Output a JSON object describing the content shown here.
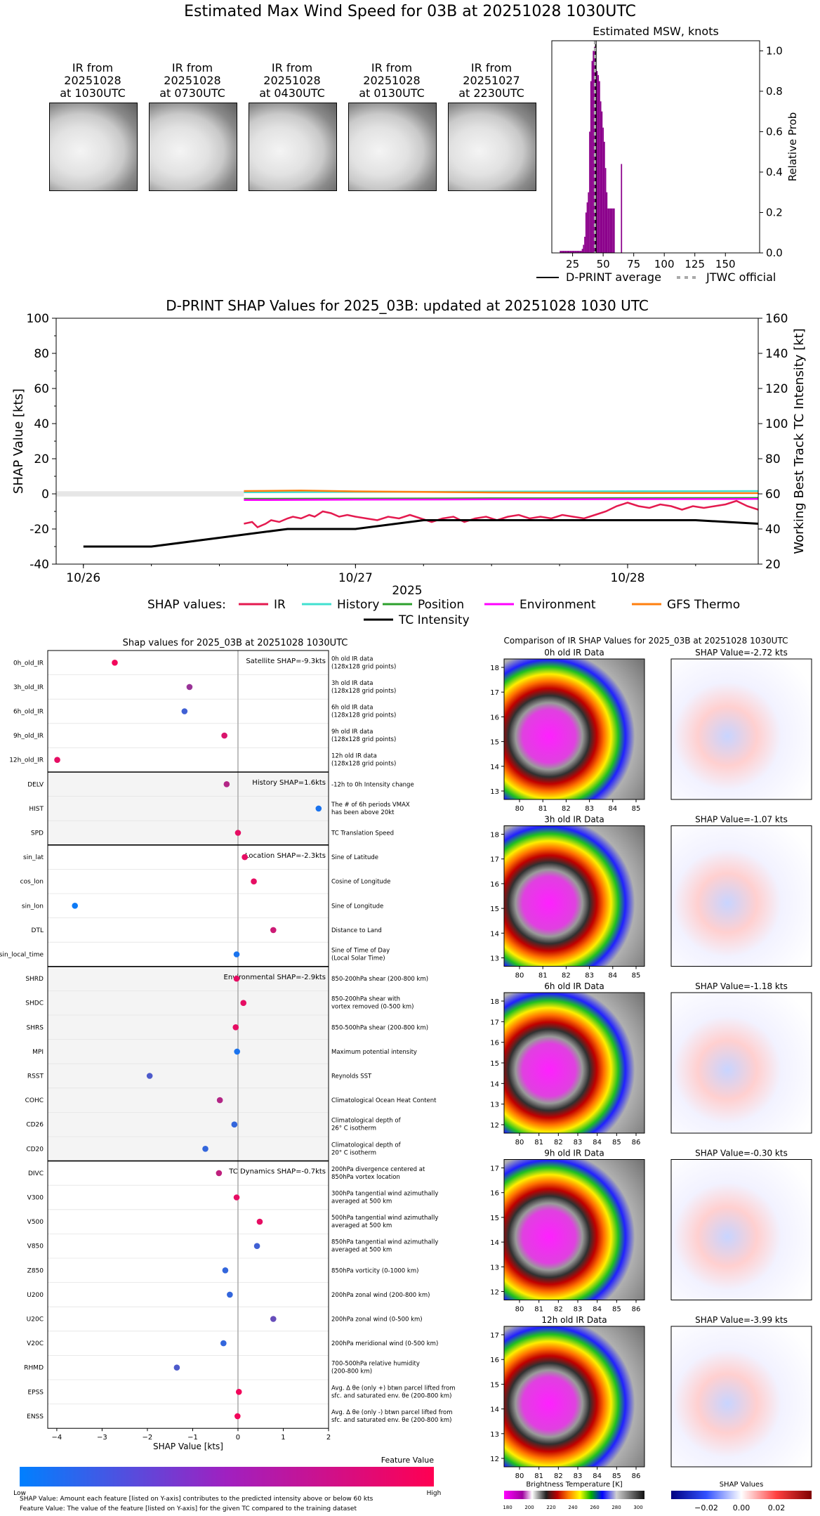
{
  "title": "Estimated Max Wind Speed for 03B at 20251028 1030UTC",
  "ir_thumbnails": [
    {
      "label": [
        "IR from",
        "20251028",
        "at 1030UTC"
      ]
    },
    {
      "label": [
        "IR from",
        "20251028",
        "at 0730UTC"
      ]
    },
    {
      "label": [
        "IR from",
        "20251028",
        "at 0430UTC"
      ]
    },
    {
      "label": [
        "IR from",
        "20251028",
        "at 0130UTC"
      ]
    },
    {
      "label": [
        "IR from",
        "20251027",
        "at 2230UTC"
      ]
    }
  ],
  "msw_chart": {
    "title": "Estimated MSW, knots",
    "ylabel": "Relative Prob",
    "legend": {
      "avg": "D-PRINT average",
      "jtwc": "JTWC official"
    }
  },
  "shap_timeseries": {
    "title": "D-PRINT SHAP Values for 2025_03B: updated at 20251028 1030 UTC",
    "ylabel_left": "SHAP Value [kts]",
    "ylabel_right": "Working Best Track TC Intensity [kt]",
    "xlabel": "2025",
    "legend_title": "SHAP values:",
    "legend": [
      "IR",
      "History",
      "Position",
      "Environment",
      "GFS Thermo",
      "TC Intensity"
    ]
  },
  "shap_features": {
    "title": "Shap values for 2025_03B at 20251028 1030UTC",
    "xlabel": "SHAP Value [kts]",
    "colorbar_label": "Feature Value",
    "colorbar_low": "Low",
    "colorbar_high": "High",
    "footnote1": "SHAP Value: Amount each feature [listed on Y-axis] contributes to the predicted intensity above or below 60 kts",
    "footnote2": "Feature Value: The value of the feature [listed on Y-axis] for the given TC compared to the training dataset",
    "groups": [
      {
        "label": "Satellite SHAP=-9.3kts"
      },
      {
        "label": "History SHAP=1.6kts"
      },
      {
        "label": "Location SHAP=-2.3kts"
      },
      {
        "label": "Environmental SHAP=-2.9kts"
      },
      {
        "label": "TC Dynamics SHAP=-0.7kts"
      }
    ],
    "rows": [
      {
        "name": "0h_old_IR",
        "desc": [
          "0h old IR data",
          "(128x128 grid points)"
        ]
      },
      {
        "name": "3h_old_IR",
        "desc": [
          "3h old IR data",
          "(128x128 grid points)"
        ]
      },
      {
        "name": "6h_old_IR",
        "desc": [
          "6h old IR data",
          "(128x128 grid points)"
        ]
      },
      {
        "name": "9h_old_IR",
        "desc": [
          "9h old IR data",
          "(128x128 grid points)"
        ]
      },
      {
        "name": "12h_old_IR",
        "desc": [
          "12h old IR data",
          "(128x128 grid points)"
        ]
      },
      {
        "name": "DELV",
        "desc": [
          "-12h to 0h Intensity change"
        ]
      },
      {
        "name": "HIST",
        "desc": [
          "The # of 6h periods VMAX",
          "has been above 20kt"
        ]
      },
      {
        "name": "SPD",
        "desc": [
          "TC Translation Speed"
        ]
      },
      {
        "name": "sin_lat",
        "desc": [
          "Sine of Latitude"
        ]
      },
      {
        "name": "cos_lon",
        "desc": [
          "Cosine of Longitude"
        ]
      },
      {
        "name": "sin_lon",
        "desc": [
          "Sine of Longitude"
        ]
      },
      {
        "name": "DTL",
        "desc": [
          "Distance to Land"
        ]
      },
      {
        "name": "sin_local_time",
        "desc": [
          "Sine of Time of Day",
          "(Local Solar Time)"
        ]
      },
      {
        "name": "SHRD",
        "desc": [
          "850-200hPa shear (200-800 km)"
        ]
      },
      {
        "name": "SHDC",
        "desc": [
          "850-200hPa shear with",
          "vortex removed (0-500 km)"
        ]
      },
      {
        "name": "SHRS",
        "desc": [
          "850-500hPa shear (200-800 km)"
        ]
      },
      {
        "name": "MPI",
        "desc": [
          "Maximum potential intensity"
        ]
      },
      {
        "name": "RSST",
        "desc": [
          "Reynolds SST"
        ]
      },
      {
        "name": "COHC",
        "desc": [
          "Climatological Ocean Heat Content"
        ]
      },
      {
        "name": "CD26",
        "desc": [
          "Climatological depth of",
          "26° C isotherm"
        ]
      },
      {
        "name": "CD20",
        "desc": [
          "Climatological depth of",
          "20° C isotherm"
        ]
      },
      {
        "name": "DIVC",
        "desc": [
          "200hPa divergence centered at",
          "850hPa vortex location"
        ]
      },
      {
        "name": "V300",
        "desc": [
          "300hPa tangential wind azimuthally",
          "averaged at 500 km"
        ]
      },
      {
        "name": "V500",
        "desc": [
          "500hPa tangential wind azimuthally",
          "averaged at 500 km"
        ]
      },
      {
        "name": "V850",
        "desc": [
          "850hPa tangential wind azimuthally",
          "averaged at 500 km"
        ]
      },
      {
        "name": "Z850",
        "desc": [
          "850hPa vorticity (0-1000 km)"
        ]
      },
      {
        "name": "U200",
        "desc": [
          "200hPa zonal wind (200-800 km)"
        ]
      },
      {
        "name": "U20C",
        "desc": [
          "200hPa zonal wind (0-500 km)"
        ]
      },
      {
        "name": "V20C",
        "desc": [
          "200hPa meridional wind (0-500 km)"
        ]
      },
      {
        "name": "RHMD",
        "desc": [
          "700-500hPa relative humidity",
          "(200-800 km)"
        ]
      },
      {
        "name": "EPSS",
        "desc": [
          "Avg. Δ θe (only +) btwn parcel lifted from",
          "sfc. and saturated env. θe (200-800 km)"
        ]
      },
      {
        "name": "ENSS",
        "desc": [
          "Avg. Δ θe (only -) btwn parcel lifted from",
          "sfc. and saturated env. θe (200-800 km)"
        ]
      }
    ]
  },
  "ir_comparison": {
    "title": "Comparison of IR SHAP Values for 2025_03B at 20251028 1030UTC",
    "panels": [
      {
        "data_title": "0h old IR Data",
        "shap_title": "SHAP Value=-2.72 kts",
        "lat_ticks": [
          "13",
          "14",
          "15",
          "16",
          "17",
          "18"
        ],
        "lon_ticks": [
          "80",
          "81",
          "82",
          "83",
          "84",
          "85"
        ]
      },
      {
        "data_title": "3h old IR Data",
        "shap_title": "SHAP Value=-1.07 kts",
        "lat_ticks": [
          "13",
          "14",
          "15",
          "16",
          "17",
          "18"
        ],
        "lon_ticks": [
          "80",
          "81",
          "82",
          "83",
          "84",
          "85"
        ]
      },
      {
        "data_title": "6h old IR Data",
        "shap_title": "SHAP Value=-1.18 kts",
        "lat_ticks": [
          "12",
          "13",
          "14",
          "15",
          "16",
          "17",
          "18"
        ],
        "lon_ticks": [
          "80",
          "81",
          "82",
          "83",
          "84",
          "85",
          "86"
        ]
      },
      {
        "data_title": "9h old IR Data",
        "shap_title": "SHAP Value=-0.30 kts",
        "lat_ticks": [
          "12",
          "13",
          "14",
          "15",
          "16",
          "17"
        ],
        "lon_ticks": [
          "80",
          "81",
          "82",
          "83",
          "84",
          "85",
          "86"
        ]
      },
      {
        "data_title": "12h old IR Data",
        "shap_title": "SHAP Value=-3.99 kts",
        "lat_ticks": [
          "12",
          "13",
          "14",
          "15",
          "16",
          "17"
        ],
        "lon_ticks": [
          "80",
          "81",
          "82",
          "83",
          "84",
          "85",
          "86"
        ]
      }
    ],
    "bt_colorbar_label": "Brightness Temperature [K]",
    "bt_ticks": [
      "180",
      "200",
      "220",
      "240",
      "260",
      "280",
      "300"
    ],
    "shap_colorbar_label": "SHAP Values",
    "shap_ticks": [
      "−0.02",
      "0.00",
      "0.02"
    ]
  },
  "chart_data": [
    {
      "type": "bar",
      "title": "Estimated MSW, knots",
      "ylabel": "Relative Prob",
      "xlim": [
        8,
        178
      ],
      "ylim": [
        0,
        1.05
      ],
      "xticks": [
        "25",
        "50",
        "75",
        "100",
        "125",
        "150"
      ],
      "yticks": [
        "0.0",
        "0.2",
        "0.4",
        "0.6",
        "0.8",
        "1.0"
      ],
      "bin_width": 1,
      "x": [
        15,
        16,
        17,
        18,
        19,
        20,
        21,
        22,
        23,
        24,
        25,
        26,
        27,
        28,
        29,
        30,
        31,
        32,
        33,
        34,
        35,
        36,
        37,
        38,
        39,
        40,
        41,
        42,
        43,
        44,
        45,
        46,
        47,
        48,
        49,
        50,
        51,
        52,
        53,
        54,
        55,
        56,
        57,
        58,
        59,
        60,
        61,
        62,
        63,
        64,
        65,
        66,
        67,
        68,
        69,
        70,
        71,
        72,
        73,
        74,
        75,
        76,
        77,
        78,
        79,
        80,
        81,
        82,
        83,
        84,
        85,
        86,
        87,
        88,
        89,
        90,
        91,
        92,
        93,
        94,
        95,
        96,
        97,
        98,
        99,
        100,
        101,
        102,
        103,
        104,
        105,
        106,
        107,
        108,
        109,
        110,
        111,
        112,
        113,
        114,
        115,
        116,
        117,
        118,
        119,
        120,
        121,
        122,
        123,
        124,
        125,
        126,
        127,
        128,
        129,
        130,
        131,
        132,
        133,
        134,
        135,
        136,
        137,
        138,
        139,
        140,
        141,
        142,
        143,
        144,
        145,
        146,
        147,
        148,
        149,
        150,
        151,
        152,
        153,
        154,
        155,
        156,
        157,
        158,
        159,
        160,
        161,
        162,
        163,
        164,
        165,
        166,
        167,
        168,
        169,
        170
      ],
      "values": [
        0.01,
        0.01,
        0.01,
        0.01,
        0.01,
        0.01,
        0.01,
        0.01,
        0.01,
        0.01,
        0.01,
        0.01,
        0.01,
        0.01,
        0.01,
        0.01,
        0.01,
        0.01,
        0.02,
        0.04,
        0.08,
        0.2,
        0.25,
        0.3,
        0.6,
        0.85,
        0.95,
        1.0,
        1.02,
        0.98,
        0.9,
        0.88,
        0.85,
        0.75,
        0.7,
        0.62,
        0.55,
        0.42,
        0.3,
        0.22,
        0.22,
        0.22,
        0.22,
        0.22,
        0.22,
        0.0,
        0.0,
        0.0,
        0.0,
        0.0,
        0.44,
        0.0,
        0.0,
        0.0,
        0.0,
        0.0,
        0.0,
        0.0,
        0.0,
        0.0,
        0.0,
        0.0,
        0.0,
        0.0,
        0.0,
        0.0,
        0.0,
        0.0,
        0.0,
        0.0,
        0.0,
        0.0,
        0.0,
        0.0,
        0.0,
        0.0,
        0.0,
        0.0,
        0.0,
        0.0,
        0.0,
        0.0,
        0.0,
        0.0,
        0.0,
        0.0,
        0.0,
        0.0,
        0.0,
        0.0,
        0.0,
        0.0,
        0.0,
        0.0,
        0.0,
        0.0,
        0.0,
        0.0,
        0.0,
        0.0,
        0.0,
        0.0,
        0.0,
        0.0,
        0.0,
        0.0,
        0.0,
        0.0,
        0.0,
        0.0,
        0.0,
        0.0,
        0.0,
        0.0,
        0.0,
        0.0,
        0.0,
        0.0,
        0.0,
        0.0,
        0.0,
        0.0,
        0.0,
        0.0,
        0.0,
        0.0,
        0.0,
        0.0,
        0.0,
        0.0,
        0.0,
        0.0,
        0.0,
        0.0,
        0.0,
        0.0,
        0.0,
        0.0,
        0.0,
        0.0,
        0.0,
        0.0,
        0.0,
        0.0,
        0.0,
        0.0,
        0.0,
        0.0,
        0.0,
        0.0,
        0.0,
        0.0,
        0.0,
        0.0,
        0.0,
        0.0
      ],
      "dprint_average": 44,
      "jtwc_official": 45
    },
    {
      "type": "line",
      "title": "D-PRINT SHAP Values for 2025_03B: updated at 20251028 1030 UTC",
      "xlabel": "2025",
      "ylabel": "SHAP Value [kts]",
      "ylabel_right": "Working Best Track TC Intensity [kt]",
      "xlim": [
        -0.1,
        2.48
      ],
      "x_unit_ticks": [
        0,
        1,
        2
      ],
      "xticks": [
        "10/26",
        "10/27",
        "10/28"
      ],
      "ylim": [
        -40,
        100
      ],
      "yticks": [
        "-40",
        "-20",
        "0",
        "20",
        "40",
        "60",
        "80",
        "100"
      ],
      "ylim_right": [
        20,
        160
      ],
      "yticks_right": [
        "20",
        "40",
        "60",
        "80",
        "100",
        "120",
        "140",
        "160"
      ],
      "series": [
        {
          "name": "IR",
          "color": "#e41a4f",
          "x": [
            0.59,
            0.62,
            0.64,
            0.67,
            0.69,
            0.72,
            0.75,
            0.77,
            0.8,
            0.83,
            0.85,
            0.88,
            0.91,
            0.94,
            0.97,
            1.0,
            1.04,
            1.08,
            1.12,
            1.16,
            1.2,
            1.24,
            1.28,
            1.32,
            1.36,
            1.4,
            1.44,
            1.48,
            1.52,
            1.56,
            1.6,
            1.64,
            1.68,
            1.72,
            1.76,
            1.8,
            1.84,
            1.88,
            1.92,
            1.96,
            2.0,
            2.04,
            2.08,
            2.12,
            2.16,
            2.2,
            2.24,
            2.28,
            2.32,
            2.36,
            2.4,
            2.44,
            2.48
          ],
          "values": [
            -17,
            -16,
            -19,
            -17,
            -15,
            -16,
            -14,
            -13,
            -14,
            -12,
            -13,
            -10,
            -11,
            -13,
            -12,
            -13,
            -14,
            -15,
            -13,
            -14,
            -12,
            -14,
            -16,
            -14,
            -13,
            -16,
            -14,
            -13,
            -15,
            -13,
            -12,
            -14,
            -13,
            -14,
            -12,
            -13,
            -14,
            -12,
            -10,
            -7,
            -5,
            -7,
            -8,
            -6,
            -7,
            -9,
            -7,
            -8,
            -7,
            -6,
            -4,
            -7,
            -9
          ]
        },
        {
          "name": "History",
          "color": "#40e0d0",
          "x": [
            0.59,
            1.0,
            1.5,
            2.0,
            2.48
          ],
          "values": [
            0.9,
            1.1,
            1.3,
            1.5,
            1.6
          ]
        },
        {
          "name": "Position",
          "color": "#2ca02c",
          "x": [
            0.59,
            1.0,
            1.5,
            2.0,
            2.48
          ],
          "values": [
            -2.8,
            -2.7,
            -2.5,
            -2.4,
            -2.3
          ]
        },
        {
          "name": "Environment",
          "color": "#ff00ff",
          "x": [
            0.59,
            1.0,
            1.5,
            2.0,
            2.48
          ],
          "values": [
            -3.5,
            -3.3,
            -3.1,
            -3.0,
            -2.9
          ]
        },
        {
          "name": "GFS Thermo",
          "color": "#ff7f0e",
          "x": [
            0.59,
            0.8,
            1.0,
            1.5,
            2.0,
            2.48
          ],
          "values": [
            1.6,
            1.9,
            1.4,
            0.8,
            0.5,
            0.4
          ]
        },
        {
          "name": "TC Intensity",
          "axis": "right",
          "color": "#000000",
          "x": [
            0.0,
            0.25,
            0.5,
            0.75,
            1.0,
            1.25,
            1.5,
            1.75,
            2.0,
            2.25,
            2.48
          ],
          "values": [
            30,
            30,
            35,
            40,
            40,
            45,
            45,
            45,
            45,
            45,
            43
          ]
        }
      ]
    },
    {
      "type": "scatter",
      "title": "Shap values for 2025_03B at 20251028 1030UTC",
      "xlabel": "SHAP Value [kts]",
      "xlim": [
        -4.2,
        2.0
      ],
      "xticks": [
        "−4",
        "−3",
        "−2",
        "−1",
        "0",
        "1",
        "2"
      ],
      "categories": [
        "0h_old_IR",
        "3h_old_IR",
        "6h_old_IR",
        "9h_old_IR",
        "12h_old_IR",
        "DELV",
        "HIST",
        "SPD",
        "sin_lat",
        "cos_lon",
        "sin_lon",
        "DTL",
        "sin_local_time",
        "SHRD",
        "SHDC",
        "SHRS",
        "MPI",
        "RSST",
        "COHC",
        "CD26",
        "CD20",
        "DIVC",
        "V300",
        "V500",
        "V850",
        "Z850",
        "U200",
        "U20C",
        "V20C",
        "RHMD",
        "EPSS",
        "ENSS"
      ],
      "values": [
        -2.72,
        -1.07,
        -1.18,
        -0.3,
        -3.99,
        -0.25,
        1.78,
        0.0,
        0.15,
        0.35,
        -3.6,
        0.78,
        -0.03,
        -0.03,
        0.12,
        -0.05,
        -0.02,
        -1.95,
        -0.4,
        -0.08,
        -0.72,
        -0.42,
        -0.03,
        0.48,
        0.42,
        -0.28,
        -0.18,
        0.78,
        -0.32,
        -1.35,
        0.02,
        -0.01
      ],
      "feature_values": [
        0.95,
        0.6,
        0.25,
        0.85,
        0.9,
        0.7,
        0.1,
        0.9,
        0.9,
        0.9,
        0.05,
        0.8,
        0.1,
        0.9,
        0.9,
        0.9,
        0.1,
        0.3,
        0.7,
        0.2,
        0.2,
        0.75,
        0.9,
        0.9,
        0.25,
        0.2,
        0.2,
        0.4,
        0.2,
        0.3,
        0.95,
        0.95
      ]
    }
  ]
}
